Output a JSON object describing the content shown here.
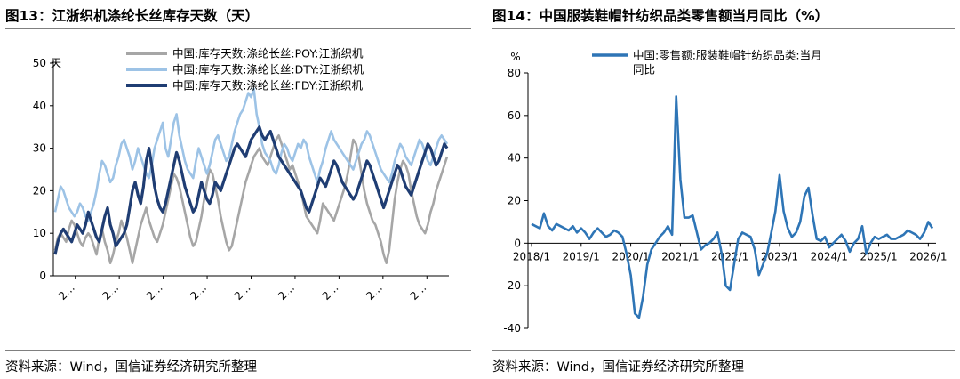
{
  "left_panel": {
    "title": "图13：江浙织机涤纶长丝库存天数（天）",
    "source": "资料来源：Wind，国信证券经济研究所整理"
  },
  "right_panel": {
    "title": "图14：中国服装鞋帽针纺织品类零售额当月同比（%）",
    "source": "资料来源：Wind，国信证券经济研究所整理"
  },
  "chart_data": [
    {
      "type": "line",
      "title": "图13：江浙织机涤纶长丝库存天数（天）",
      "xlabel": "",
      "ylabel": "天",
      "ylim": [
        0,
        50
      ],
      "yticks": [
        0,
        10,
        20,
        30,
        40,
        50
      ],
      "x_tick_labels": [
        "2…",
        "2…",
        "2…",
        "2…",
        "2…",
        "2…",
        "2…",
        "2…",
        "2…"
      ],
      "grid": false,
      "legend": "top-left",
      "series": [
        {
          "name": "中国:库存天数:涤纶长丝:POY:江浙织机",
          "color": "#a6a6a6",
          "values": [
            6,
            9,
            10,
            9,
            8,
            11,
            13,
            12,
            10,
            8,
            7,
            9,
            10,
            9,
            7,
            5,
            9,
            11,
            8,
            6,
            3,
            5,
            8,
            10,
            13,
            11,
            9,
            6,
            3,
            6,
            9,
            12,
            14,
            16,
            13,
            11,
            9,
            8,
            10,
            12,
            15,
            18,
            21,
            24,
            23,
            21,
            18,
            15,
            12,
            9,
            7,
            8,
            11,
            14,
            18,
            22,
            25,
            24,
            21,
            18,
            14,
            11,
            8,
            6,
            7,
            10,
            13,
            16,
            19,
            22,
            24,
            26,
            28,
            29,
            30,
            28,
            27,
            26,
            28,
            30,
            32,
            33,
            31,
            29,
            27,
            25,
            26,
            24,
            22,
            20,
            17,
            14,
            13,
            12,
            11,
            10,
            13,
            17,
            16,
            15,
            14,
            13,
            15,
            17,
            19,
            21,
            24,
            28,
            32,
            31,
            28,
            24,
            20,
            17,
            15,
            13,
            12,
            10,
            8,
            5,
            3,
            6,
            12,
            18,
            22,
            25,
            27,
            26,
            24,
            20,
            17,
            14,
            12,
            11,
            10,
            12,
            15,
            17,
            20,
            22,
            24,
            26,
            28
          ]
        },
        {
          "name": "中国:库存天数:涤纶长丝:DTY:江浙织机",
          "color": "#9dc3e6",
          "values": [
            15,
            18,
            21,
            20,
            18,
            16,
            15,
            14,
            15,
            17,
            16,
            14,
            13,
            15,
            17,
            20,
            24,
            27,
            26,
            24,
            22,
            23,
            26,
            28,
            31,
            32,
            30,
            28,
            25,
            27,
            30,
            28,
            26,
            24,
            23,
            26,
            30,
            32,
            34,
            36,
            30,
            28,
            32,
            36,
            38,
            33,
            30,
            27,
            25,
            24,
            23,
            27,
            30,
            28,
            26,
            24,
            26,
            29,
            32,
            33,
            31,
            29,
            27,
            28,
            31,
            34,
            36,
            38,
            39,
            41,
            43,
            42,
            44,
            38,
            35,
            31,
            29,
            28,
            27,
            25,
            24,
            26,
            29,
            31,
            30,
            28,
            27,
            29,
            31,
            30,
            32,
            31,
            28,
            26,
            24,
            22,
            25,
            27,
            30,
            32,
            34,
            32,
            31,
            30,
            29,
            28,
            27,
            26,
            25,
            27,
            29,
            31,
            32,
            34,
            33,
            31,
            29,
            27,
            25,
            24,
            23,
            22,
            24,
            27,
            29,
            31,
            30,
            28,
            27,
            26,
            28,
            30,
            32,
            31,
            29,
            27,
            26,
            28,
            30,
            32,
            33,
            32,
            31
          ]
        },
        {
          "name": "中国:库存天数:涤纶长丝:FDY:江浙织机",
          "color": "#1f3d73",
          "values": [
            5,
            8,
            10,
            11,
            10,
            9,
            8,
            10,
            12,
            11,
            10,
            12,
            15,
            13,
            11,
            9,
            8,
            11,
            14,
            16,
            12,
            10,
            7,
            8,
            9,
            10,
            12,
            16,
            20,
            22,
            19,
            17,
            21,
            27,
            30,
            26,
            21,
            18,
            16,
            15,
            17,
            20,
            23,
            26,
            29,
            27,
            24,
            21,
            19,
            17,
            15,
            16,
            19,
            22,
            20,
            18,
            17,
            19,
            22,
            21,
            20,
            22,
            24,
            26,
            28,
            30,
            31,
            30,
            29,
            28,
            30,
            32,
            33,
            34,
            35,
            33,
            32,
            33,
            34,
            32,
            30,
            28,
            27,
            26,
            25,
            24,
            23,
            22,
            21,
            20,
            18,
            16,
            15,
            17,
            19,
            21,
            23,
            22,
            21,
            23,
            25,
            27,
            26,
            24,
            22,
            21,
            20,
            19,
            18,
            19,
            21,
            23,
            25,
            27,
            26,
            24,
            22,
            20,
            18,
            16,
            18,
            20,
            22,
            24,
            26,
            25,
            23,
            21,
            20,
            19,
            21,
            23,
            25,
            27,
            29,
            31,
            30,
            28,
            26,
            27,
            29,
            31,
            30
          ]
        }
      ]
    },
    {
      "type": "line",
      "title": "图14：中国服装鞋帽针纺织品类零售额当月同比（%）",
      "xlabel": "",
      "ylabel": "%",
      "ylim": [
        -40,
        80
      ],
      "yticks": [
        -40,
        -20,
        0,
        20,
        40,
        60,
        80
      ],
      "x_tick_labels": [
        "2018/1",
        "2019/1",
        "2020/1",
        "2021/1",
        "2022/1",
        "2023/1",
        "2024/1",
        "2025/1",
        "2026/1"
      ],
      "grid": false,
      "legend": "top",
      "series": [
        {
          "name": "中国:零售额:服装鞋帽针纺织品类:当月同比",
          "color": "#2e75b6",
          "x": [
            0,
            1,
            2,
            3,
            4,
            5,
            6,
            7,
            8,
            9,
            10,
            11,
            12,
            13,
            14,
            15,
            16,
            17,
            18,
            19,
            20,
            21,
            22,
            23,
            24,
            25,
            26,
            27,
            28,
            29,
            30,
            31,
            32,
            33,
            34,
            35,
            36,
            37,
            38,
            39,
            40,
            41,
            42,
            43,
            44,
            45,
            46,
            47,
            48,
            49,
            50,
            51,
            52,
            53,
            54,
            55,
            56,
            57,
            58,
            59,
            60,
            61,
            62,
            63,
            64,
            65,
            66,
            67,
            68,
            69,
            70,
            71,
            72,
            73,
            74,
            75,
            76,
            77,
            78,
            79,
            80,
            81,
            82,
            83,
            84,
            85,
            86,
            87,
            88,
            89,
            90,
            91,
            92,
            93,
            94,
            95,
            96,
            97
          ],
          "values": [
            9,
            8,
            7,
            14,
            8,
            6,
            9,
            8,
            7,
            6,
            8,
            5,
            7,
            5,
            2,
            5,
            7,
            5,
            3,
            4,
            6,
            5,
            3,
            -5,
            -15,
            -33,
            -35,
            -25,
            -10,
            -3,
            0,
            3,
            5,
            8,
            4,
            69,
            30,
            12,
            12,
            13,
            5,
            -3,
            -1,
            0,
            2,
            5,
            -5,
            -20,
            -22,
            -10,
            2,
            5,
            4,
            3,
            -3,
            -15,
            -10,
            -5,
            5,
            15,
            32,
            15,
            7,
            3,
            5,
            10,
            22,
            26,
            13,
            2,
            1,
            3,
            -2,
            0,
            2,
            4,
            1,
            -4,
            0,
            2,
            8,
            -5,
            0,
            3,
            2,
            3,
            4,
            2,
            2,
            3,
            4,
            6,
            5,
            4,
            2,
            5,
            10,
            7
          ]
        }
      ]
    }
  ]
}
